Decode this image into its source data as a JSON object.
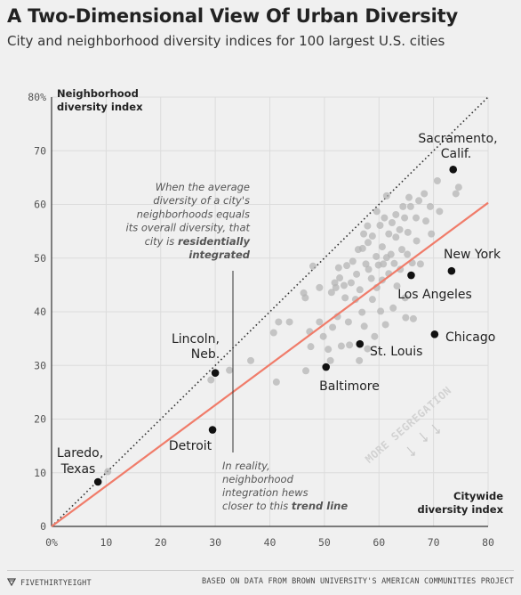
{
  "title": "A Two-Dimensional View Of Urban Diversity",
  "subtitle": "City and neighborhood diversity indices for 100 largest U.S. cities",
  "footer": {
    "brand": "FIVETHIRTYEIGHT",
    "source": "BASED ON DATA FROM BROWN UNIVERSITY'S AMERICAN COMMUNITIES PROJECT",
    "brand_icon": "fivethirtyeight-logo-icon"
  },
  "colors": {
    "background": "#f0f0f0",
    "trend": "#f07c6a",
    "points": "#b3b3b3",
    "highlight": "#111111",
    "grid": "#dcdcdc",
    "segregation_text": "#d2d2d2"
  },
  "chart_data": {
    "type": "scatter",
    "xlabel": "Citywide diversity index",
    "ylabel": "Neighborhood diversity index",
    "xlim": [
      0,
      80
    ],
    "ylim": [
      0,
      80
    ],
    "x_ticks": [
      "0%",
      "10",
      "20",
      "30",
      "40",
      "50",
      "60",
      "70",
      "80"
    ],
    "y_ticks": [
      "0",
      "10",
      "20",
      "30",
      "40",
      "50",
      "60",
      "70",
      "80%"
    ],
    "grid": true,
    "equality_line": {
      "from": [
        0,
        0
      ],
      "to": [
        80,
        80
      ],
      "style": "dotted"
    },
    "trend_line": {
      "from": [
        0,
        0
      ],
      "to": [
        80,
        60.3
      ]
    },
    "highlighted": [
      {
        "label": "Laredo, Texas",
        "x": 8.5,
        "y": 8.3
      },
      {
        "label": "Detroit",
        "x": 29.5,
        "y": 18
      },
      {
        "label": "Lincoln, Neb.",
        "x": 30,
        "y": 28.6
      },
      {
        "label": "Baltimore",
        "x": 50.3,
        "y": 29.7
      },
      {
        "label": "St. Louis",
        "x": 56.5,
        "y": 34
      },
      {
        "label": "Chicago",
        "x": 70.2,
        "y": 35.8
      },
      {
        "label": "Los Angeles",
        "x": 65.9,
        "y": 46.8
      },
      {
        "label": "New York",
        "x": 73.3,
        "y": 47.6
      },
      {
        "label": "Sacramento, Calif.",
        "x": 73.6,
        "y": 66.5
      }
    ],
    "points": [
      [
        10.3,
        10.2
      ],
      [
        29.2,
        27.3
      ],
      [
        32.6,
        29.1
      ],
      [
        36.5,
        30.9
      ],
      [
        41.2,
        26.9
      ],
      [
        40.7,
        36.1
      ],
      [
        41.6,
        38.1
      ],
      [
        43.6,
        38.1
      ],
      [
        46.2,
        43.5
      ],
      [
        46.5,
        42.6
      ],
      [
        46.6,
        29
      ],
      [
        47.3,
        36.3
      ],
      [
        47.5,
        33.5
      ],
      [
        47.9,
        48.5
      ],
      [
        49.1,
        38.1
      ],
      [
        49.1,
        44.5
      ],
      [
        49.8,
        35.4
      ],
      [
        50.7,
        33
      ],
      [
        51.1,
        30.9
      ],
      [
        51.3,
        43.6
      ],
      [
        51.5,
        37.1
      ],
      [
        51.9,
        45.4
      ],
      [
        52.1,
        44.5
      ],
      [
        52.4,
        39.1
      ],
      [
        52.6,
        48.2
      ],
      [
        52.8,
        46.3
      ],
      [
        53.1,
        33.6
      ],
      [
        53.6,
        44.9
      ],
      [
        53.8,
        42.6
      ],
      [
        54.1,
        48.6
      ],
      [
        54.4,
        38.1
      ],
      [
        54.6,
        33.8
      ],
      [
        54.9,
        45.4
      ],
      [
        55.2,
        49.4
      ],
      [
        55.7,
        42.3
      ],
      [
        55.9,
        47
      ],
      [
        56.2,
        51.6
      ],
      [
        56.4,
        30.9
      ],
      [
        56.5,
        44.1
      ],
      [
        56.9,
        39.9
      ],
      [
        57,
        51.8
      ],
      [
        57.2,
        54.5
      ],
      [
        57.3,
        37.3
      ],
      [
        57.6,
        48.9
      ],
      [
        57.9,
        33.1
      ],
      [
        57.9,
        56
      ],
      [
        58,
        52.9
      ],
      [
        58.1,
        47.9
      ],
      [
        58.6,
        46.2
      ],
      [
        58.8,
        42.3
      ],
      [
        58.8,
        54.1
      ],
      [
        59.2,
        35.4
      ],
      [
        59.5,
        50.3
      ],
      [
        59.6,
        44.5
      ],
      [
        59.6,
        58.7
      ],
      [
        59.9,
        48.7
      ],
      [
        60.2,
        56.1
      ],
      [
        60.3,
        40.1
      ],
      [
        60.6,
        45.9
      ],
      [
        60.6,
        52.1
      ],
      [
        60.8,
        48.9
      ],
      [
        61,
        57.5
      ],
      [
        61.2,
        37.6
      ],
      [
        61.4,
        50.1
      ],
      [
        61.4,
        61.6
      ],
      [
        61.8,
        47.1
      ],
      [
        61.8,
        54.5
      ],
      [
        62.2,
        50.7
      ],
      [
        62.4,
        56.6
      ],
      [
        62.6,
        40.7
      ],
      [
        62.8,
        49
      ],
      [
        63.1,
        58.1
      ],
      [
        63.1,
        53.9
      ],
      [
        63.3,
        44.8
      ],
      [
        63.8,
        55.3
      ],
      [
        63.9,
        47.9
      ],
      [
        64.2,
        51.6
      ],
      [
        64.4,
        59.6
      ],
      [
        64.7,
        57.5
      ],
      [
        64.8,
        42.6
      ],
      [
        64.9,
        38.9
      ],
      [
        65.2,
        50.7
      ],
      [
        65.3,
        54.8
      ],
      [
        65.5,
        61.3
      ],
      [
        65.8,
        59.6
      ],
      [
        66.1,
        49.1
      ],
      [
        66.3,
        38.7
      ],
      [
        66.8,
        57.5
      ],
      [
        66.9,
        53.2
      ],
      [
        67.3,
        60.7
      ],
      [
        67.6,
        48.9
      ],
      [
        68.3,
        62
      ],
      [
        68.6,
        56.9
      ],
      [
        69.4,
        59.6
      ],
      [
        69.6,
        54.5
      ],
      [
        70.7,
        64.4
      ],
      [
        71.1,
        58.7
      ],
      [
        74.1,
        62
      ],
      [
        74.6,
        63.2
      ]
    ],
    "annotations": {
      "equality_note": [
        "When the average",
        "diversity of a city's",
        "neighborhoods equals",
        "its overall diversity, that",
        "city is {b}residentially{/b}",
        "{b}integrated{/b}"
      ],
      "trend_note": [
        "In reality,",
        "neighborhood",
        "integration hews",
        "closer to this {b}trend line{/b}"
      ],
      "segregation_label": "MORE SEGREGATION"
    }
  }
}
